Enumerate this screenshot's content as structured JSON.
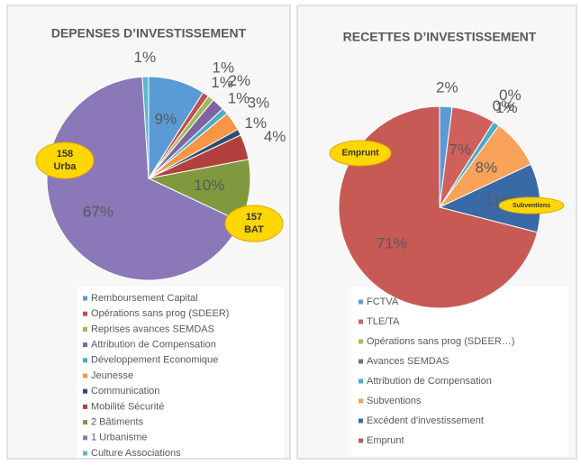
{
  "chart_data": [
    {
      "type": "pie",
      "title": "DEPENSES D’INVESTISSEMENT",
      "categories": [
        "Remboursement Capital",
        "Opérations sans prog (SDEER)",
        "Reprises avances SEMDAS",
        "Attribution de Compensation",
        "Développement Economique",
        "Jeunesse",
        "Communication",
        "Mobilité Sécurité",
        "2 Bâtiments",
        "1 Urbanisme",
        "Culture Associations"
      ],
      "values": [
        9,
        1,
        1,
        2,
        1,
        3,
        1,
        4,
        10,
        67,
        1
      ],
      "value_labels": [
        "9%",
        "1%",
        "1%",
        "2%",
        "1%",
        "3%",
        "1%",
        "4%",
        "10%",
        "67%",
        "1%"
      ],
      "colors": [
        "#5b9bd5",
        "#c0504d",
        "#9bbb59",
        "#8064a2",
        "#4bacc6",
        "#f79646",
        "#2c4d75",
        "#b2403d",
        "#7f9a3e",
        "#8a78b8",
        "#5fb8d0"
      ],
      "annotations": [
        "158\nUrba",
        "157\nBAT"
      ]
    },
    {
      "type": "pie",
      "title": "RECETTES D’INVESTISSEMENT",
      "categories": [
        "FCTVA",
        "TLE/TA",
        "Opérations sans prog (SDEER…)",
        "Avances SEMDAS",
        "Attribution de Compensation",
        "Subventions",
        "Excédent d'investissement",
        "Emprunt"
      ],
      "values": [
        2,
        7,
        0,
        0,
        1,
        8,
        11,
        71
      ],
      "value_labels": [
        "2%",
        "7%",
        "0%",
        "0%",
        "1%",
        "8%",
        "11%",
        "71%"
      ],
      "colors": [
        "#5b9bd5",
        "#d0605c",
        "#9bbb59",
        "#8064a2",
        "#4bacc6",
        "#f9a25a",
        "#3a6aa6",
        "#c85a55"
      ],
      "annotations": [
        "Emprunt",
        "Subventions"
      ]
    }
  ]
}
